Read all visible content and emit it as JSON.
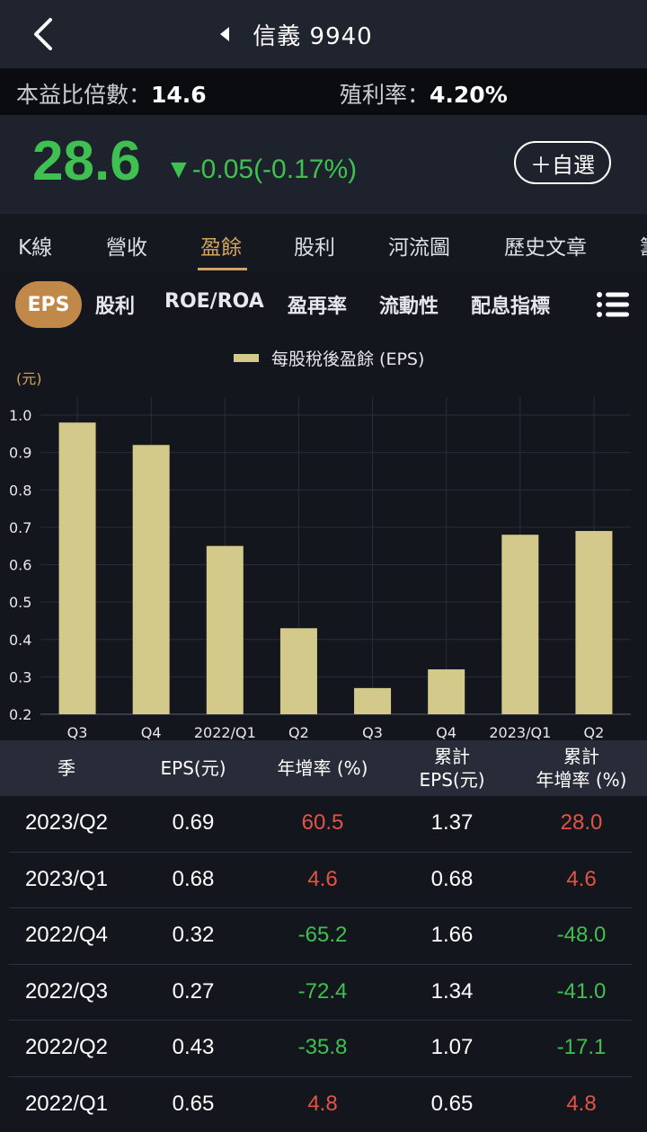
{
  "header": {
    "title": "信義 9940"
  },
  "ratios": {
    "pe_label": "本益比倍數：",
    "pe_value": "14.6",
    "dy_label": "殖利率：",
    "dy_value": "4.20%"
  },
  "quote": {
    "price": "28.6",
    "change": "▼-0.05(-0.17%)",
    "watch_label": "＋自選"
  },
  "tabs": [
    {
      "label": "K線",
      "active": false
    },
    {
      "label": "營收",
      "active": false
    },
    {
      "label": "盈餘",
      "active": true
    },
    {
      "label": "股利",
      "active": false
    },
    {
      "label": "河流圖",
      "active": false
    },
    {
      "label": "歷史文章",
      "active": false
    },
    {
      "label": "籌",
      "active": false
    }
  ],
  "subtabs": [
    {
      "label": "EPS",
      "active": true
    },
    {
      "label": "股利",
      "active": false
    },
    {
      "label": "ROE/ROA",
      "active": false
    },
    {
      "label": "盈再率",
      "active": false
    },
    {
      "label": "流動性",
      "active": false
    },
    {
      "label": "配息指標",
      "active": false
    }
  ],
  "colors": {
    "bar": "#d3c98a",
    "up": "#e25444",
    "down": "#3ec150",
    "accent": "#c0894a"
  },
  "chart_data": {
    "type": "bar",
    "legend": "每股稅後盈餘 (EPS)",
    "legend_position": "top-center",
    "unit": "(元)",
    "categories": [
      "Q3",
      "Q4",
      "2022/Q1",
      "Q2",
      "Q3",
      "Q4",
      "2023/Q1",
      "Q2"
    ],
    "series": [
      {
        "name": "每股稅後盈餘 (EPS)",
        "values": [
          0.98,
          0.92,
          0.65,
          0.43,
          0.27,
          0.32,
          0.68,
          0.69
        ]
      }
    ],
    "yticks": [
      "0.2",
      "0.3",
      "0.4",
      "0.5",
      "0.6",
      "0.7",
      "0.8",
      "0.9",
      "1.0"
    ],
    "ylim": [
      0.2,
      1.0
    ],
    "grid": true
  },
  "table": {
    "headers": [
      {
        "line1": "季",
        "line2": ""
      },
      {
        "line1": "EPS(元)",
        "line2": ""
      },
      {
        "line1": "年增率 (%)",
        "line2": ""
      },
      {
        "line1": "累計",
        "line2": "EPS(元)"
      },
      {
        "line1": "累計",
        "line2": "年增率 (%)"
      }
    ],
    "rows": [
      {
        "season": "2023/Q2",
        "eps": "0.69",
        "yoy": "60.5",
        "cum_eps": "1.37",
        "cum_yoy": "28.0",
        "yoy_dir": "up",
        "cum_dir": "up"
      },
      {
        "season": "2023/Q1",
        "eps": "0.68",
        "yoy": "4.6",
        "cum_eps": "0.68",
        "cum_yoy": "4.6",
        "yoy_dir": "up",
        "cum_dir": "up"
      },
      {
        "season": "2022/Q4",
        "eps": "0.32",
        "yoy": "-65.2",
        "cum_eps": "1.66",
        "cum_yoy": "-48.0",
        "yoy_dir": "down",
        "cum_dir": "down"
      },
      {
        "season": "2022/Q3",
        "eps": "0.27",
        "yoy": "-72.4",
        "cum_eps": "1.34",
        "cum_yoy": "-41.0",
        "yoy_dir": "down",
        "cum_dir": "down"
      },
      {
        "season": "2022/Q2",
        "eps": "0.43",
        "yoy": "-35.8",
        "cum_eps": "1.07",
        "cum_yoy": "-17.1",
        "yoy_dir": "down",
        "cum_dir": "down"
      },
      {
        "season": "2022/Q1",
        "eps": "0.65",
        "yoy": "4.8",
        "cum_eps": "0.65",
        "cum_yoy": "4.8",
        "yoy_dir": "up",
        "cum_dir": "up"
      }
    ]
  }
}
